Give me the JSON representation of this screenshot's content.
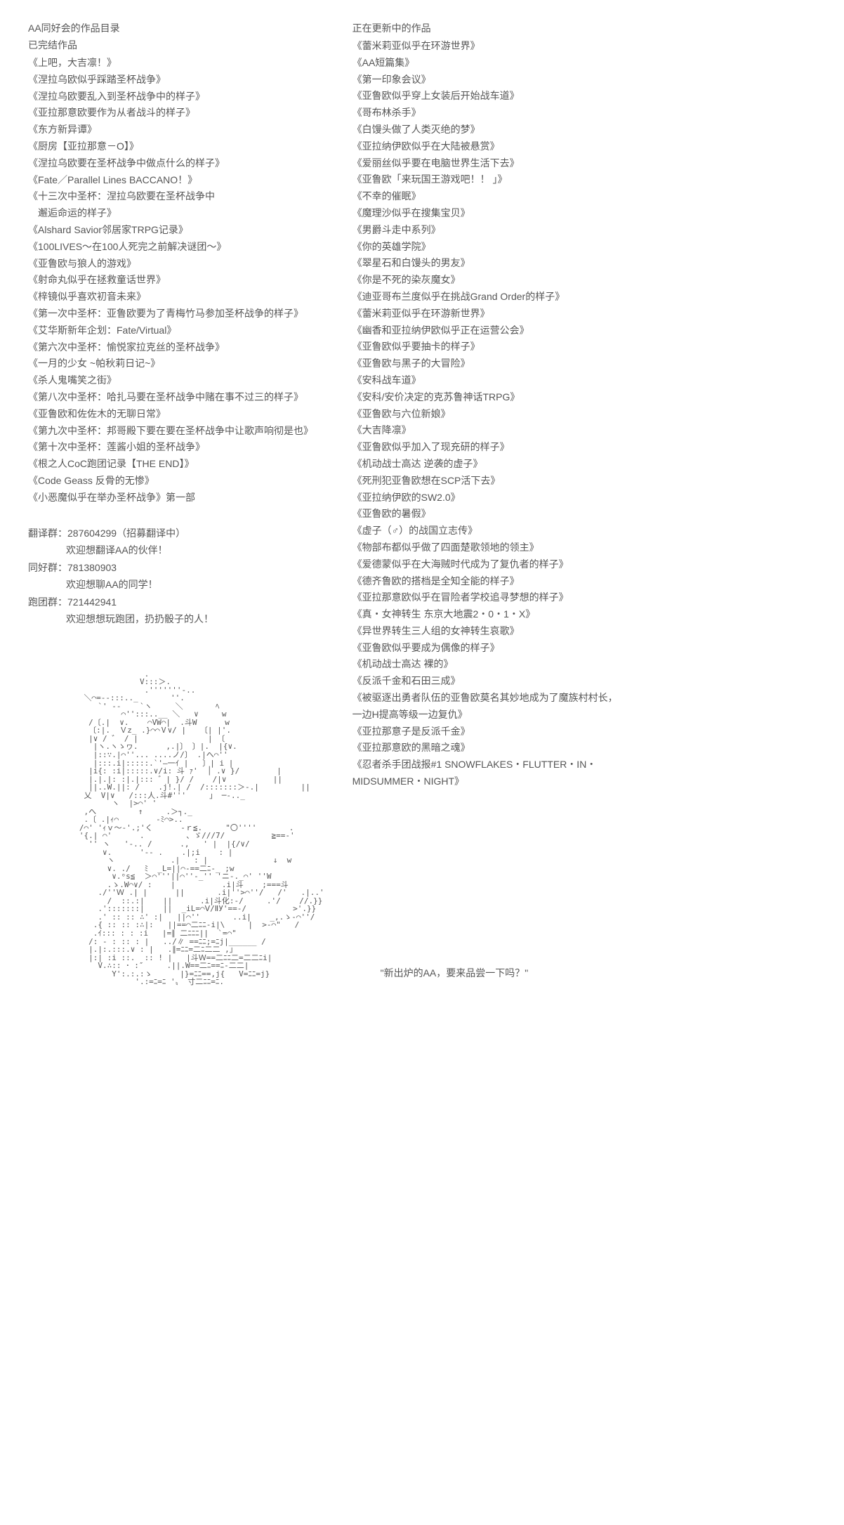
{
  "left": {
    "title1": "AA同好会的作品目录",
    "title2": "已完结作品",
    "works": [
      "《上吧，大吉凛！》",
      "《涅拉乌欧似乎踩踏圣杯战争》",
      "《涅拉乌欧要乱入到圣杯战争中的样子》",
      "《亚拉那意欧要作为从者战斗的样子》",
      "《东方新异谭》",
      "《厨房【亚拉那意－O】》",
      "《涅拉乌欧要在圣杯战争中做点什么的样子》",
      "《Fate／Parallel Lines BACCANO！》",
      "《十三次中圣杯：涅拉乌欧要在圣杯战争中",
      "　邂逅命运的样子》",
      "《Alshard Savior邻居家TRPG记录》",
      "《100LIVES～在100人死完之前解决谜团～》",
      "《亚鲁欧与狼人的游戏》",
      "《射命丸似乎在拯救童话世界》",
      "《梓镜似乎喜欢初音未来》",
      "《第一次中圣杯：亚鲁欧要为了青梅竹马参加圣杯战争的样子》",
      "《艾华斯新年企划：Fate/Virtual》",
      "《第六次中圣杯：愉悦家拉克丝的圣杯战争》",
      "《一月的少女 ~帕秋莉日记~》",
      "《杀人鬼嘴笑之街》",
      "《第八次中圣杯：哈扎马要在圣杯战争中赌在事不过三的样子》",
      "《亚鲁欧和佐佐木的无聊日常》",
      "《第九次中圣杯：邦哥殿下要在要在圣杯战争中让歌声响彻是也》",
      "《第十次中圣杯：莲酱小姐的圣杯战争》",
      "《根之人CoC跑团记录【THE END】》",
      "《Code Geass 反骨的无惨》",
      "《小恶魔似乎在举办圣杯战争》第一部"
    ],
    "groups": [
      {
        "label": "翻译群：287604299（招募翻译中）",
        "sub": "欢迎想翻译AA的伙伴！"
      },
      {
        "label": "同好群：781380903",
        "sub": "欢迎想聊AA的同学！"
      },
      {
        "label": "跑团群：721442941",
        "sub": "欢迎想想玩跑团，扔扔骰子的人！"
      }
    ],
    "ascii": "                         .\n                        V:::＞.\n                         .'''''''-..\n            ＼⌒=‐-:::.._       ''.\n               `' ‐-    `ヽ     ＼       ﾍ\n                    ⌒'':::..__ ＼   ∨     w\n             /〔.|  ∨.    ⌒VW⌒|  .斗W      w\n             〔:|.  Ｖz_ .}⌒⌒Ⅴ∨/ |   〔| |'.\n             |∨ / ゛ / |               | 〔\n              |ヽ.ヽゝヮ.      ,.|〕 〕|.  |{∨.\n              |::∵.|⌒''... ....ノ/〕 .|へ⌒''\n              |:::.i|:::::.`'―一ｲ |   〕| i |\n             |i{: :i|:::::.∨/i: 斗 ｧ'  │ .∨ }/        |\n             |.|.|: :|.|::: ゛| }/ /    /|∨          ||\n             ||..W.||: /    .j!.| /  /:::::::＞-.|         ||\n            乂  V|∨   /:::人.斗#'''     」 ─-.._\n                  ヽ  |>⌒' '\n            ,へ         ↑     .＞┐._\n            .〔 .|ｨ⌒        -ﾐ⌒>..\n           /⌒' 'ｨｖ～-'.;'く      -ｒ≦.     \"〇''''       .\n           '{.| ⌒'      .         、ゞ///7/          ≧==-'\n             '' ヽ   '-.. /      .,   ' |  |{/∨/\n                ∨.      '‐- .    .|;i    : |\n                 ヽ            .|   : |              ↓  w\n                 ∨. .∕   ﾐ  _L=||⌒-==二ﾆ-_ ;w\n                  ∨.ᵒs≦  ＞⌒'''||⌒''-_'' 'ニ-._⌒' ''W\n                 .ゝ.W⌒∨/ :    |          .i|斗    ;===斗\n               ./''Ｗ .| |      ||       .i|''>⌒''/   /'   .|..'\n                 /  ::.:|    ||      .i|斗化:-/     .'/    //.}}\n               .':::::::|    ||  _iL=⌒Ⅴ/ⅡУ'==-/          >'.}}\n               .' :: :: ∴' :|   ||⌒''       ..i|    _,.ゝ-⌒''/\n              .{ :: :: :∴|:   ||==⌒二ﾆﾆ-i|\\     |  >-⌒\"   /\n              .ｲ::: : : :i   |=∥ 二ﾆﾆﾆ||  `=⌒\"\n             /: - : :: : |   ../∥ ==ﾆﾆ;=ﾆj|______ /\n             |.|:.:::.∨ : |   .∥=ﾆﾆ=二ﾆ二二 ,｣\n             |:| :i ::.  :: ! |   |斗Ｗ==二ﾆﾆ二=二二ﾆi|\n               V.∴:: ･ :″     .||.W==二ﾆ==ﾆ-二二|\n                  Y':.:.:ゝ      |}=ﾆﾆ==,j{   V=ﾆﾆ=j}\n                       '.:=ﾆ=ﾆ '〟 寸二ﾆﾆ=ﾆ."
  },
  "right": {
    "title": "正在更新中的作品",
    "works": [
      "《蕾米莉亚似乎在环游世界》",
      "《AA短篇集》",
      "《第一印象会议》",
      "《亚鲁欧似乎穿上女装后开始战车道》",
      "《哥布林杀手》",
      "《白馒头做了人类灭绝的梦》",
      "《亚拉纳伊欧似乎在大陆被悬赏》",
      "《爱丽丝似乎要在电脑世界生活下去》",
      "《亚鲁欧「来玩国王游戏吧！！ 」》",
      "《不幸的催眠》",
      "《魔理沙似乎在搜集宝贝》",
      "《男爵斗走中系列》",
      "《你的英雄学院》",
      "《翠星石和白馒头的男友》",
      "《你是不死的染灰魔女》",
      "《迪亚哥布兰度似乎在挑战Grand Order的样子》",
      "《蕾米莉亚似乎在环游新世界》",
      "《幽香和亚拉纳伊欧似乎正在运营公会》",
      "《亚鲁欧似乎要抽卡的样子》",
      "《亚鲁欧与黑子的大冒险》",
      "《安科战车道》",
      "《安科/安价决定的克苏鲁神话TRPG》",
      "《亚鲁欧与六位新娘》",
      "《大吉降凛》",
      "《亚鲁欧似乎加入了现充研的样子》",
      "《机动战士高达 逆袭的虚子》",
      "《死刑犯亚鲁欧想在SCP活下去》",
      "《亚拉纳伊欧的SW2.0》",
      "《亚鲁欧的暑假》",
      "《虚子（♂）的战国立志传》",
      "《物部布都似乎做了四面楚歌领地的领主》",
      "《爱德蒙似乎在大海贼时代成为了复仇者的样子》",
      "《德齐鲁欧的搭档是全知全能的样子》",
      "《亚拉那意欧似乎在冒险者学校追寻梦想的样子》",
      "《真・女神转生 东京大地震2・0・1・X》",
      "《异世界转生三人组的女神转生哀歌》",
      "《亚鲁欧似乎要成为偶像的样子》",
      "《机动战士高达 裸的》",
      "《反派千金和石田三成》",
      "《被驱逐出勇者队伍的亚鲁欧莫名其妙地成为了魔族村村长，",
      "一边H提高等级一边复仇》",
      "《亚拉那意子是反派千金》",
      "《亚拉那意欧的黑暗之魂》",
      "《忍者杀手团战报#1 SNOWFLAKES・FLUTTER・IN・",
      "MIDSUMMER・NIGHT》"
    ],
    "quote": "\"新出炉的AA，要来品尝一下吗？\""
  }
}
